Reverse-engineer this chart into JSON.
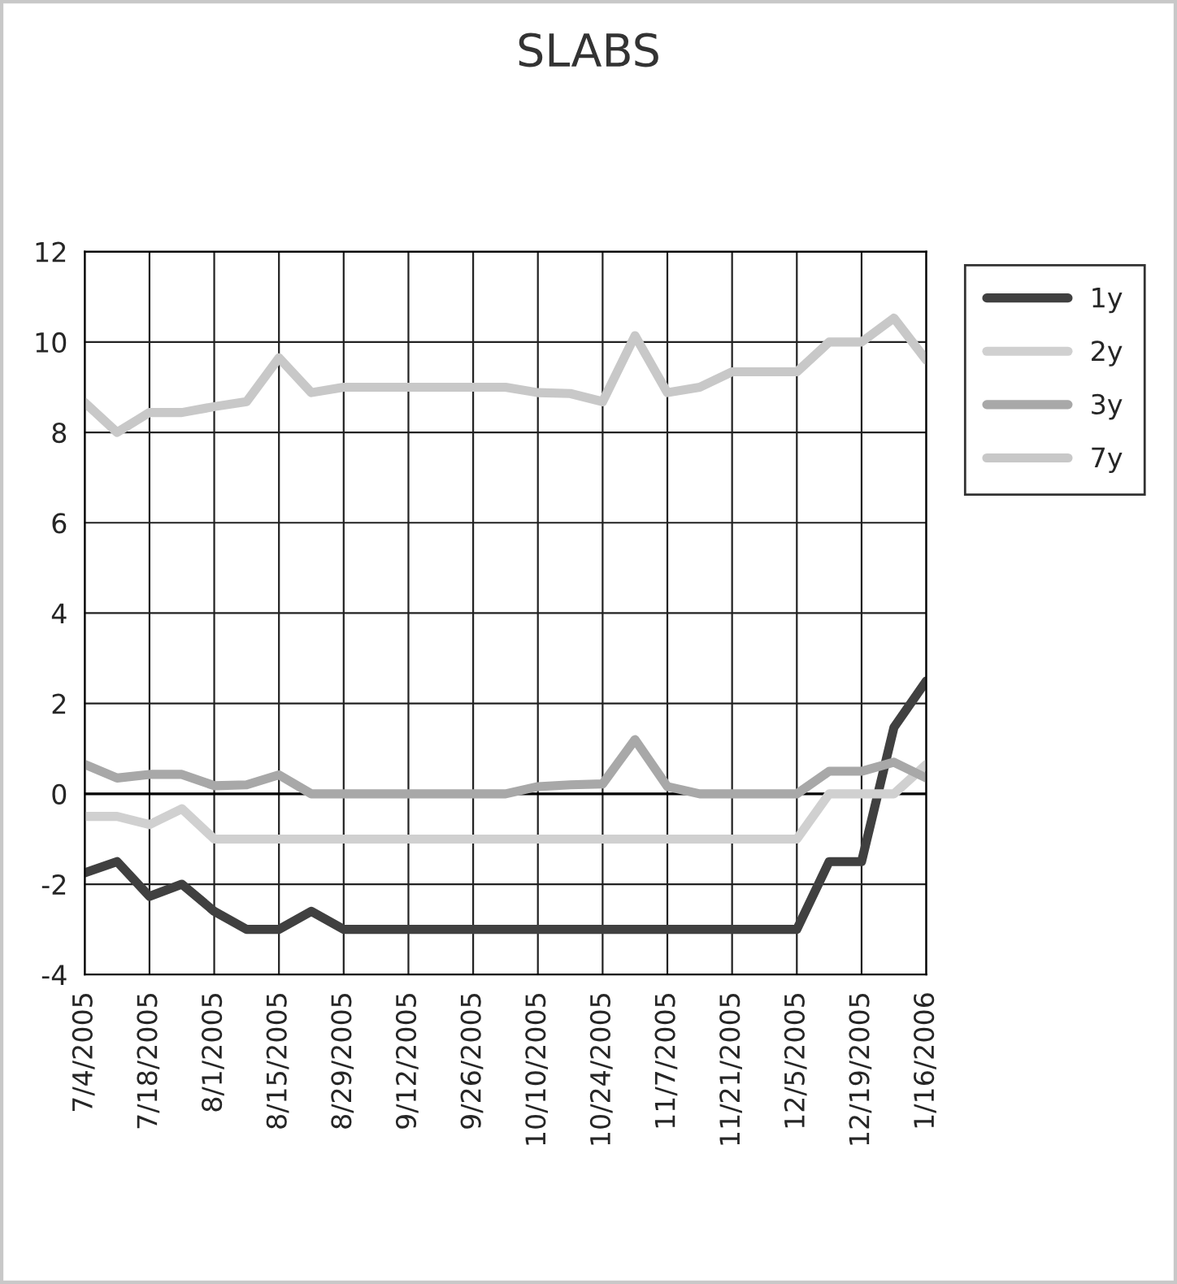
{
  "chart_data": {
    "type": "line",
    "title": "SLABS",
    "categories": [
      "7/4/2005",
      null,
      "7/18/2005",
      null,
      "8/1/2005",
      null,
      "8/15/2005",
      null,
      "8/29/2005",
      null,
      "9/12/2005",
      null,
      "9/26/2005",
      null,
      "10/10/2005",
      null,
      "10/24/2005",
      null,
      "11/7/2005",
      null,
      "11/21/2005",
      null,
      "12/5/2005",
      null,
      "12/19/2005",
      null,
      "1/16/2006"
    ],
    "series": [
      {
        "name": "1y",
        "color": "#404040",
        "values": [
          -1.75,
          -1.5,
          -2.27,
          -2.0,
          -2.6,
          -3.0,
          -3.0,
          -2.6,
          -3.0,
          -3.0,
          -3.0,
          -3.0,
          -3.0,
          -3.0,
          -3.0,
          -3.0,
          -3.0,
          -3.0,
          -3.0,
          -3.0,
          -3.0,
          -3.0,
          -3.0,
          -1.5,
          -1.5,
          1.47,
          2.5
        ]
      },
      {
        "name": "2y",
        "color": "#d0d0d0",
        "values": [
          -0.5,
          -0.5,
          -0.68,
          -0.33,
          -1.0,
          -1.0,
          -1.0,
          -1.0,
          -1.0,
          -1.0,
          -1.0,
          -1.0,
          -1.0,
          -1.0,
          -1.0,
          -1.0,
          -1.0,
          -1.0,
          -1.0,
          -1.0,
          -1.0,
          -1.0,
          -1.0,
          0,
          0,
          0,
          0.65
        ]
      },
      {
        "name": "3y",
        "color": "#a8a8a8",
        "values": [
          0.65,
          0.35,
          0.43,
          0.43,
          0.18,
          0.2,
          0.42,
          0,
          0,
          0,
          0,
          0,
          0,
          0,
          0.16,
          0.2,
          0.22,
          1.2,
          0.16,
          0,
          0,
          0,
          0,
          0.5,
          0.5,
          0.7,
          0.35
        ]
      },
      {
        "name": "7y",
        "color": "#c8c8c8",
        "values": [
          8.66,
          8.0,
          8.44,
          8.44,
          8.57,
          8.68,
          9.65,
          8.88,
          9.0,
          9.0,
          9.0,
          9.0,
          9.0,
          9.0,
          8.88,
          8.86,
          8.68,
          10.14,
          8.88,
          9.0,
          9.34,
          9.34,
          9.34,
          10.0,
          10.0,
          10.53,
          9.6
        ]
      }
    ],
    "ylim": [
      -4,
      12
    ],
    "yticks": [
      -4,
      -2,
      0,
      2,
      4,
      6,
      8,
      10,
      12
    ],
    "grid": true,
    "legend": "top right",
    "line_style": "solid",
    "marker": "none"
  }
}
